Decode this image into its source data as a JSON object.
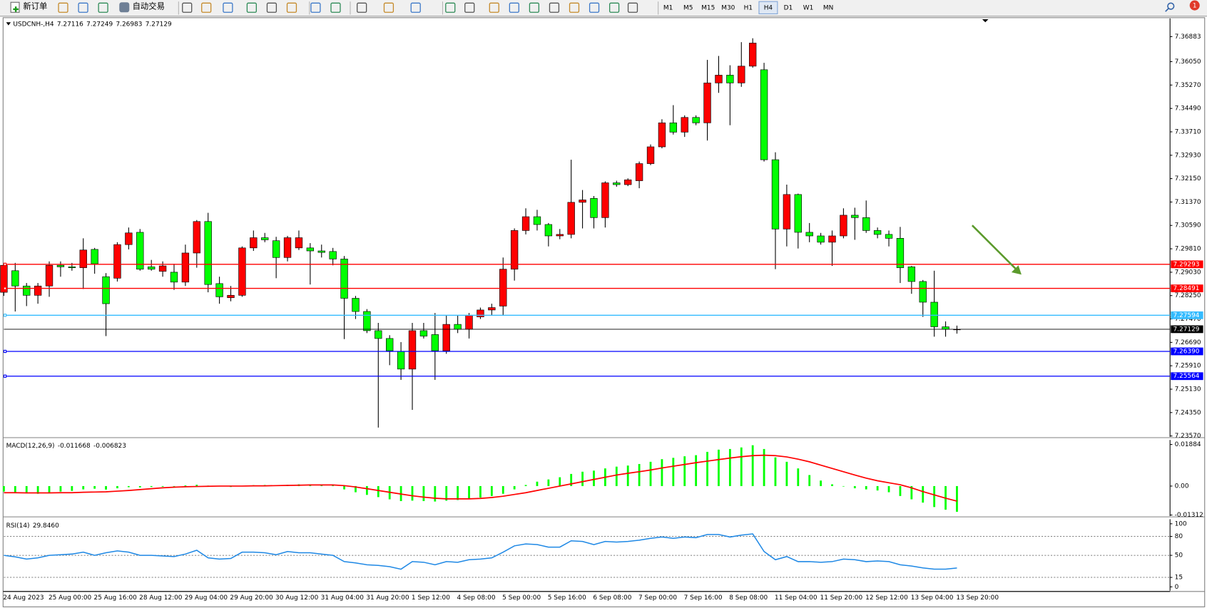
{
  "toolbar": {
    "new_order": "新订单",
    "auto_trading": "自动交易",
    "timeframes": [
      "M1",
      "M5",
      "M15",
      "M30",
      "H1",
      "H4",
      "D1",
      "W1",
      "MN"
    ],
    "active_timeframe": "H4",
    "notification_count": 1
  },
  "chart_data": [
    {
      "type": "candlestick",
      "title": "USDCNH-,H4",
      "categories": [
        "24 Aug 2023",
        null,
        null,
        null,
        "25 Aug 00:00",
        null,
        null,
        null,
        "25 Aug 16:00",
        null,
        null,
        null,
        "28 Aug 12:00",
        null,
        null,
        null,
        "29 Aug 04:00",
        null,
        null,
        null,
        "29 Aug 20:00",
        null,
        null,
        null,
        "30 Aug 12:00",
        null,
        null,
        null,
        "31 Aug 04:00",
        null,
        null,
        null,
        "31 Aug 20:00",
        null,
        null,
        null,
        "1 Sep 12:00",
        null,
        null,
        null,
        "4 Sep 08:00",
        null,
        null,
        null,
        "5 Sep 00:00",
        null,
        null,
        null,
        "5 Sep 16:00",
        null,
        null,
        null,
        "6 Sep 08:00",
        null,
        null,
        null,
        "7 Sep 00:00",
        null,
        null,
        null,
        "7 Sep 16:00",
        null,
        null,
        null,
        "8 Sep 08:00",
        null,
        null,
        null,
        "11 Sep 04:00",
        null,
        null,
        null,
        "11 Sep 20:00",
        null,
        null,
        null,
        "12 Sep 12:00",
        null,
        null,
        null,
        "13 Sep 04:00",
        null,
        null,
        null,
        "13 Sep 20:00"
      ],
      "open": [
        7.2836,
        7.2908,
        7.2857,
        7.2826,
        7.2857,
        7.2926,
        7.2921,
        7.2918,
        7.2979,
        7.2888,
        7.2883,
        7.2995,
        7.3036,
        7.2921,
        7.2906,
        7.2903,
        7.287,
        7.2967,
        7.3072,
        7.2865,
        7.2818,
        7.2826,
        7.2984,
        7.3018,
        7.3008,
        7.2952,
        7.2984,
        7.2984,
        7.2974,
        7.2972,
        7.2947,
        7.2816,
        7.2772,
        7.2708,
        7.2682,
        7.2639,
        7.258,
        7.2708,
        7.2695,
        7.2641,
        7.2729,
        7.2713,
        7.2754,
        7.2777,
        7.279,
        7.2913,
        7.3042,
        7.3088,
        7.3062,
        7.3024,
        7.3029,
        7.3136,
        7.3149,
        7.3085,
        7.3201,
        7.3195,
        7.3208,
        7.3265,
        7.3321,
        7.3401,
        7.337,
        7.3419,
        7.3401,
        7.3534,
        7.356,
        7.3534,
        7.359,
        7.3578,
        7.3278,
        7.3047,
        7.3162,
        7.3036,
        7.3024,
        7.3003,
        7.3024,
        7.3093,
        7.3085,
        7.3042,
        7.3029,
        7.3016,
        7.2921,
        7.2872,
        7.2803,
        7.2721,
        7.27116
      ],
      "high": [
        7.2934,
        7.2934,
        7.2867,
        7.2867,
        7.2939,
        7.2939,
        7.2934,
        7.3016,
        7.2984,
        7.29,
        7.3003,
        7.3052,
        7.3047,
        7.2944,
        7.2939,
        7.2931,
        7.2995,
        7.3077,
        7.3101,
        7.2888,
        7.2857,
        7.2989,
        7.3042,
        7.3034,
        7.3021,
        7.3024,
        7.3042,
        7.3,
        7.2995,
        7.2984,
        7.2957,
        7.2824,
        7.278,
        7.2734,
        7.2693,
        7.267,
        7.2734,
        7.2734,
        7.2767,
        7.2759,
        7.2759,
        7.2767,
        7.2785,
        7.2798,
        7.2952,
        7.3049,
        7.3116,
        7.3111,
        7.3067,
        7.3047,
        7.3278,
        7.3177,
        7.3157,
        7.3206,
        7.3208,
        7.3216,
        7.3272,
        7.3329,
        7.3413,
        7.346,
        7.3426,
        7.3426,
        7.3611,
        7.3624,
        7.3593,
        7.367,
        7.3683,
        7.3601,
        7.3303,
        7.3195,
        7.3165,
        7.3067,
        7.3034,
        7.3042,
        7.3116,
        7.3118,
        7.3142,
        7.3052,
        7.3042,
        7.3054,
        7.2924,
        7.2877,
        7.2908,
        7.2739,
        7.27249
      ],
      "low": [
        7.2824,
        7.2772,
        7.279,
        7.2798,
        7.2821,
        7.2888,
        7.2908,
        7.2847,
        7.2898,
        7.269,
        7.2872,
        7.2979,
        7.2908,
        7.2908,
        7.2888,
        7.2844,
        7.2857,
        7.2918,
        7.2836,
        7.2798,
        7.2806,
        7.2821,
        7.2974,
        7.3003,
        7.2883,
        7.2939,
        7.2977,
        7.2862,
        7.2952,
        7.2926,
        7.268,
        7.2747,
        7.27,
        7.2385,
        7.2593,
        7.2544,
        7.2444,
        7.2682,
        7.2544,
        7.2631,
        7.27,
        7.2682,
        7.2747,
        7.2759,
        7.2759,
        7.2875,
        7.3029,
        7.3042,
        7.2989,
        7.3013,
        7.3016,
        7.3049,
        7.3049,
        7.3052,
        7.3188,
        7.319,
        7.3183,
        7.326,
        7.3316,
        7.3362,
        7.3354,
        7.3393,
        7.3342,
        7.3501,
        7.3393,
        7.3521,
        7.3585,
        7.3272,
        7.2913,
        7.2989,
        7.2982,
        7.3003,
        7.2995,
        7.2924,
        7.3016,
        7.3011,
        7.3034,
        7.3016,
        7.2989,
        7.2867,
        7.2831,
        7.2754,
        7.2688,
        7.2688,
        7.26983
      ],
      "close": [
        7.2926,
        7.2857,
        7.2826,
        7.2857,
        7.2926,
        7.2921,
        7.2918,
        7.2977,
        7.2931,
        7.2798,
        7.2995,
        7.3034,
        7.2913,
        7.2913,
        7.2924,
        7.287,
        7.2967,
        7.3072,
        7.2862,
        7.2821,
        7.2826,
        7.2984,
        7.3018,
        7.3011,
        7.2952,
        7.3018,
        7.3018,
        7.2974,
        7.2969,
        7.2947,
        7.2816,
        7.2772,
        7.2708,
        7.2682,
        7.2641,
        7.258,
        7.2708,
        7.269,
        7.2641,
        7.2729,
        7.2713,
        7.2759,
        7.2777,
        7.2785,
        7.2913,
        7.3042,
        7.3088,
        7.3062,
        7.3024,
        7.3029,
        7.3136,
        7.3144,
        7.3085,
        7.3201,
        7.3195,
        7.3211,
        7.3265,
        7.3321,
        7.3401,
        7.337,
        7.3419,
        7.3401,
        7.3534,
        7.356,
        7.3534,
        7.359,
        7.3667,
        7.3278,
        7.3047,
        7.3162,
        7.3036,
        7.3024,
        7.3003,
        7.3024,
        7.3093,
        7.3085,
        7.3042,
        7.3029,
        7.3016,
        7.2918,
        7.2872,
        7.2803,
        7.2721,
        7.2713,
        7.27129
      ],
      "up_color": "#ff0000",
      "down_color": "#00ff00",
      "ylim": [
        7.2354,
        7.3749
      ],
      "yticks": [
        7.36883,
        {
          "value": 7.3605,
          "label": "7.36050"
        },
        {
          "value": 7.3527,
          "label": "7.35270"
        },
        {
          "value": 7.3449,
          "label": "7.34490"
        },
        {
          "value": 7.3371,
          "label": "7.33710"
        },
        {
          "value": 7.3293,
          "label": "7.32930"
        },
        {
          "value": 7.3215,
          "label": "7.32150"
        },
        {
          "value": 7.3137,
          "label": "7.31370"
        },
        {
          "value": 7.3059,
          "label": "7.30590"
        },
        {
          "value": 7.2981,
          "label": "7.29810"
        },
        {
          "value": 7.2903,
          "label": "7.29030"
        },
        {
          "value": 7.2825,
          "label": "7.28250"
        },
        {
          "value": 7.2747,
          "label": "7.27470"
        },
        {
          "value": 7.2669,
          "label": "7.26690"
        },
        {
          "value": 7.2591,
          "label": "7.25910"
        },
        {
          "value": 7.2513,
          "label": "7.25130"
        },
        {
          "value": 7.2435,
          "label": "7.24350"
        },
        {
          "value": 7.2357,
          "label": "7.23570"
        }
      ],
      "hlines": [
        {
          "value": 7.29293,
          "color": "#ff0000"
        },
        {
          "value": 7.28491,
          "color": "#ff0000"
        },
        {
          "value": 7.27594,
          "color": "#33bbff"
        },
        {
          "value": 7.2639,
          "label": "7.26390",
          "color": "#0000ff"
        },
        {
          "value": 7.25564,
          "color": "#0000ff"
        }
      ]
    },
    {
      "type": "macd",
      "title": "MACD(12,26,9)",
      "histogram": [
        -0.0025,
        -0.003,
        -0.0033,
        -0.0035,
        -0.003,
        -0.0025,
        -0.0022,
        -0.0015,
        -0.0012,
        -0.0016,
        -0.001,
        -0.0005,
        -0.0006,
        -0.0004,
        -0.0003,
        -0.0002,
        0.0003,
        0.0006,
        0.0002,
        -0.0002,
        -0.0004,
        0,
        0.0004,
        0.0005,
        0.0003,
        0.0006,
        0.0008,
        0.0008,
        0.0006,
        0.0004,
        -0.0015,
        -0.0028,
        -0.004,
        -0.005,
        -0.006,
        -0.0068,
        -0.0066,
        -0.0068,
        -0.007,
        -0.0066,
        -0.0063,
        -0.0058,
        -0.0052,
        -0.0045,
        -0.0035,
        -0.0015,
        0.0005,
        0.002,
        0.003,
        0.004,
        0.0055,
        0.0065,
        0.007,
        0.008,
        0.0088,
        0.0093,
        0.01,
        0.011,
        0.0122,
        0.0128,
        0.0135,
        0.014,
        0.0155,
        0.0165,
        0.0168,
        0.0175,
        0.0185,
        0.0168,
        0.013,
        0.011,
        0.008,
        0.005,
        0.0025,
        0.0008,
        -0.0002,
        -0.001,
        -0.0015,
        -0.002,
        -0.0028,
        -0.0045,
        -0.006,
        -0.0075,
        -0.0095,
        -0.0107,
        -0.011668
      ],
      "histogram_color": "#00ff00",
      "signal": [
        -0.003,
        -0.003,
        -0.0031,
        -0.0031,
        -0.0031,
        -0.003,
        -0.003,
        -0.0028,
        -0.0027,
        -0.0026,
        -0.0023,
        -0.002,
        -0.0016,
        -0.0012,
        -0.0008,
        -0.0005,
        -0.0003,
        -0.0002,
        -0.0001,
        0,
        0,
        0,
        0.0001,
        0.0001,
        0.0002,
        0.0003,
        0.0004,
        0.0005,
        0.0005,
        0.0005,
        0.0002,
        -0.0004,
        -0.0012,
        -0.002,
        -0.0028,
        -0.0036,
        -0.0044,
        -0.005,
        -0.0055,
        -0.0058,
        -0.0058,
        -0.0058,
        -0.0056,
        -0.0052,
        -0.0046,
        -0.0038,
        -0.003,
        -0.002,
        -0.001,
        0,
        0.001,
        0.002,
        0.003,
        0.004,
        0.005,
        0.0058,
        0.0065,
        0.0073,
        0.0082,
        0.009,
        0.0098,
        0.0106,
        0.0113,
        0.012,
        0.0127,
        0.0133,
        0.0138,
        0.014,
        0.0138,
        0.0132,
        0.0122,
        0.011,
        0.0095,
        0.008,
        0.0065,
        0.005,
        0.0036,
        0.0024,
        0.0015,
        0.0006,
        -0.0008,
        -0.0025,
        -0.004,
        -0.0055,
        -0.006823
      ],
      "signal_color": "#ff0000",
      "ylim": [
        -0.0136,
        0.0209
      ],
      "yticks": [
        0.01884,
        {
          "value": 0,
          "label": "0.00"
        },
        -0.01312
      ]
    },
    {
      "type": "rsi",
      "title": "RSI(14)",
      "values": [
        50,
        47.6,
        44,
        46,
        50,
        51,
        52,
        55,
        50,
        54,
        57,
        55,
        50,
        50,
        49,
        48,
        52,
        58,
        46,
        44,
        45,
        55,
        55,
        54,
        51,
        56,
        54,
        54,
        52,
        50,
        40,
        38,
        35,
        34,
        32,
        28,
        40,
        39,
        35,
        40,
        39,
        43,
        44,
        46,
        55,
        65,
        68,
        67,
        63,
        63,
        73,
        72,
        67,
        72,
        71,
        72,
        74,
        77,
        79,
        77,
        79,
        78,
        83,
        83,
        79,
        82,
        84,
        56,
        43,
        48,
        40,
        40,
        39,
        40,
        44,
        43,
        40,
        41,
        40,
        35,
        33,
        30,
        28,
        28,
        29.846
      ],
      "current_label": "29.8460",
      "color": "#1e88e5",
      "ylim": [
        0,
        100
      ],
      "yticks": [
        100,
        80,
        50,
        15,
        0
      ],
      "levels": [
        80,
        50,
        15
      ]
    }
  ]
}
